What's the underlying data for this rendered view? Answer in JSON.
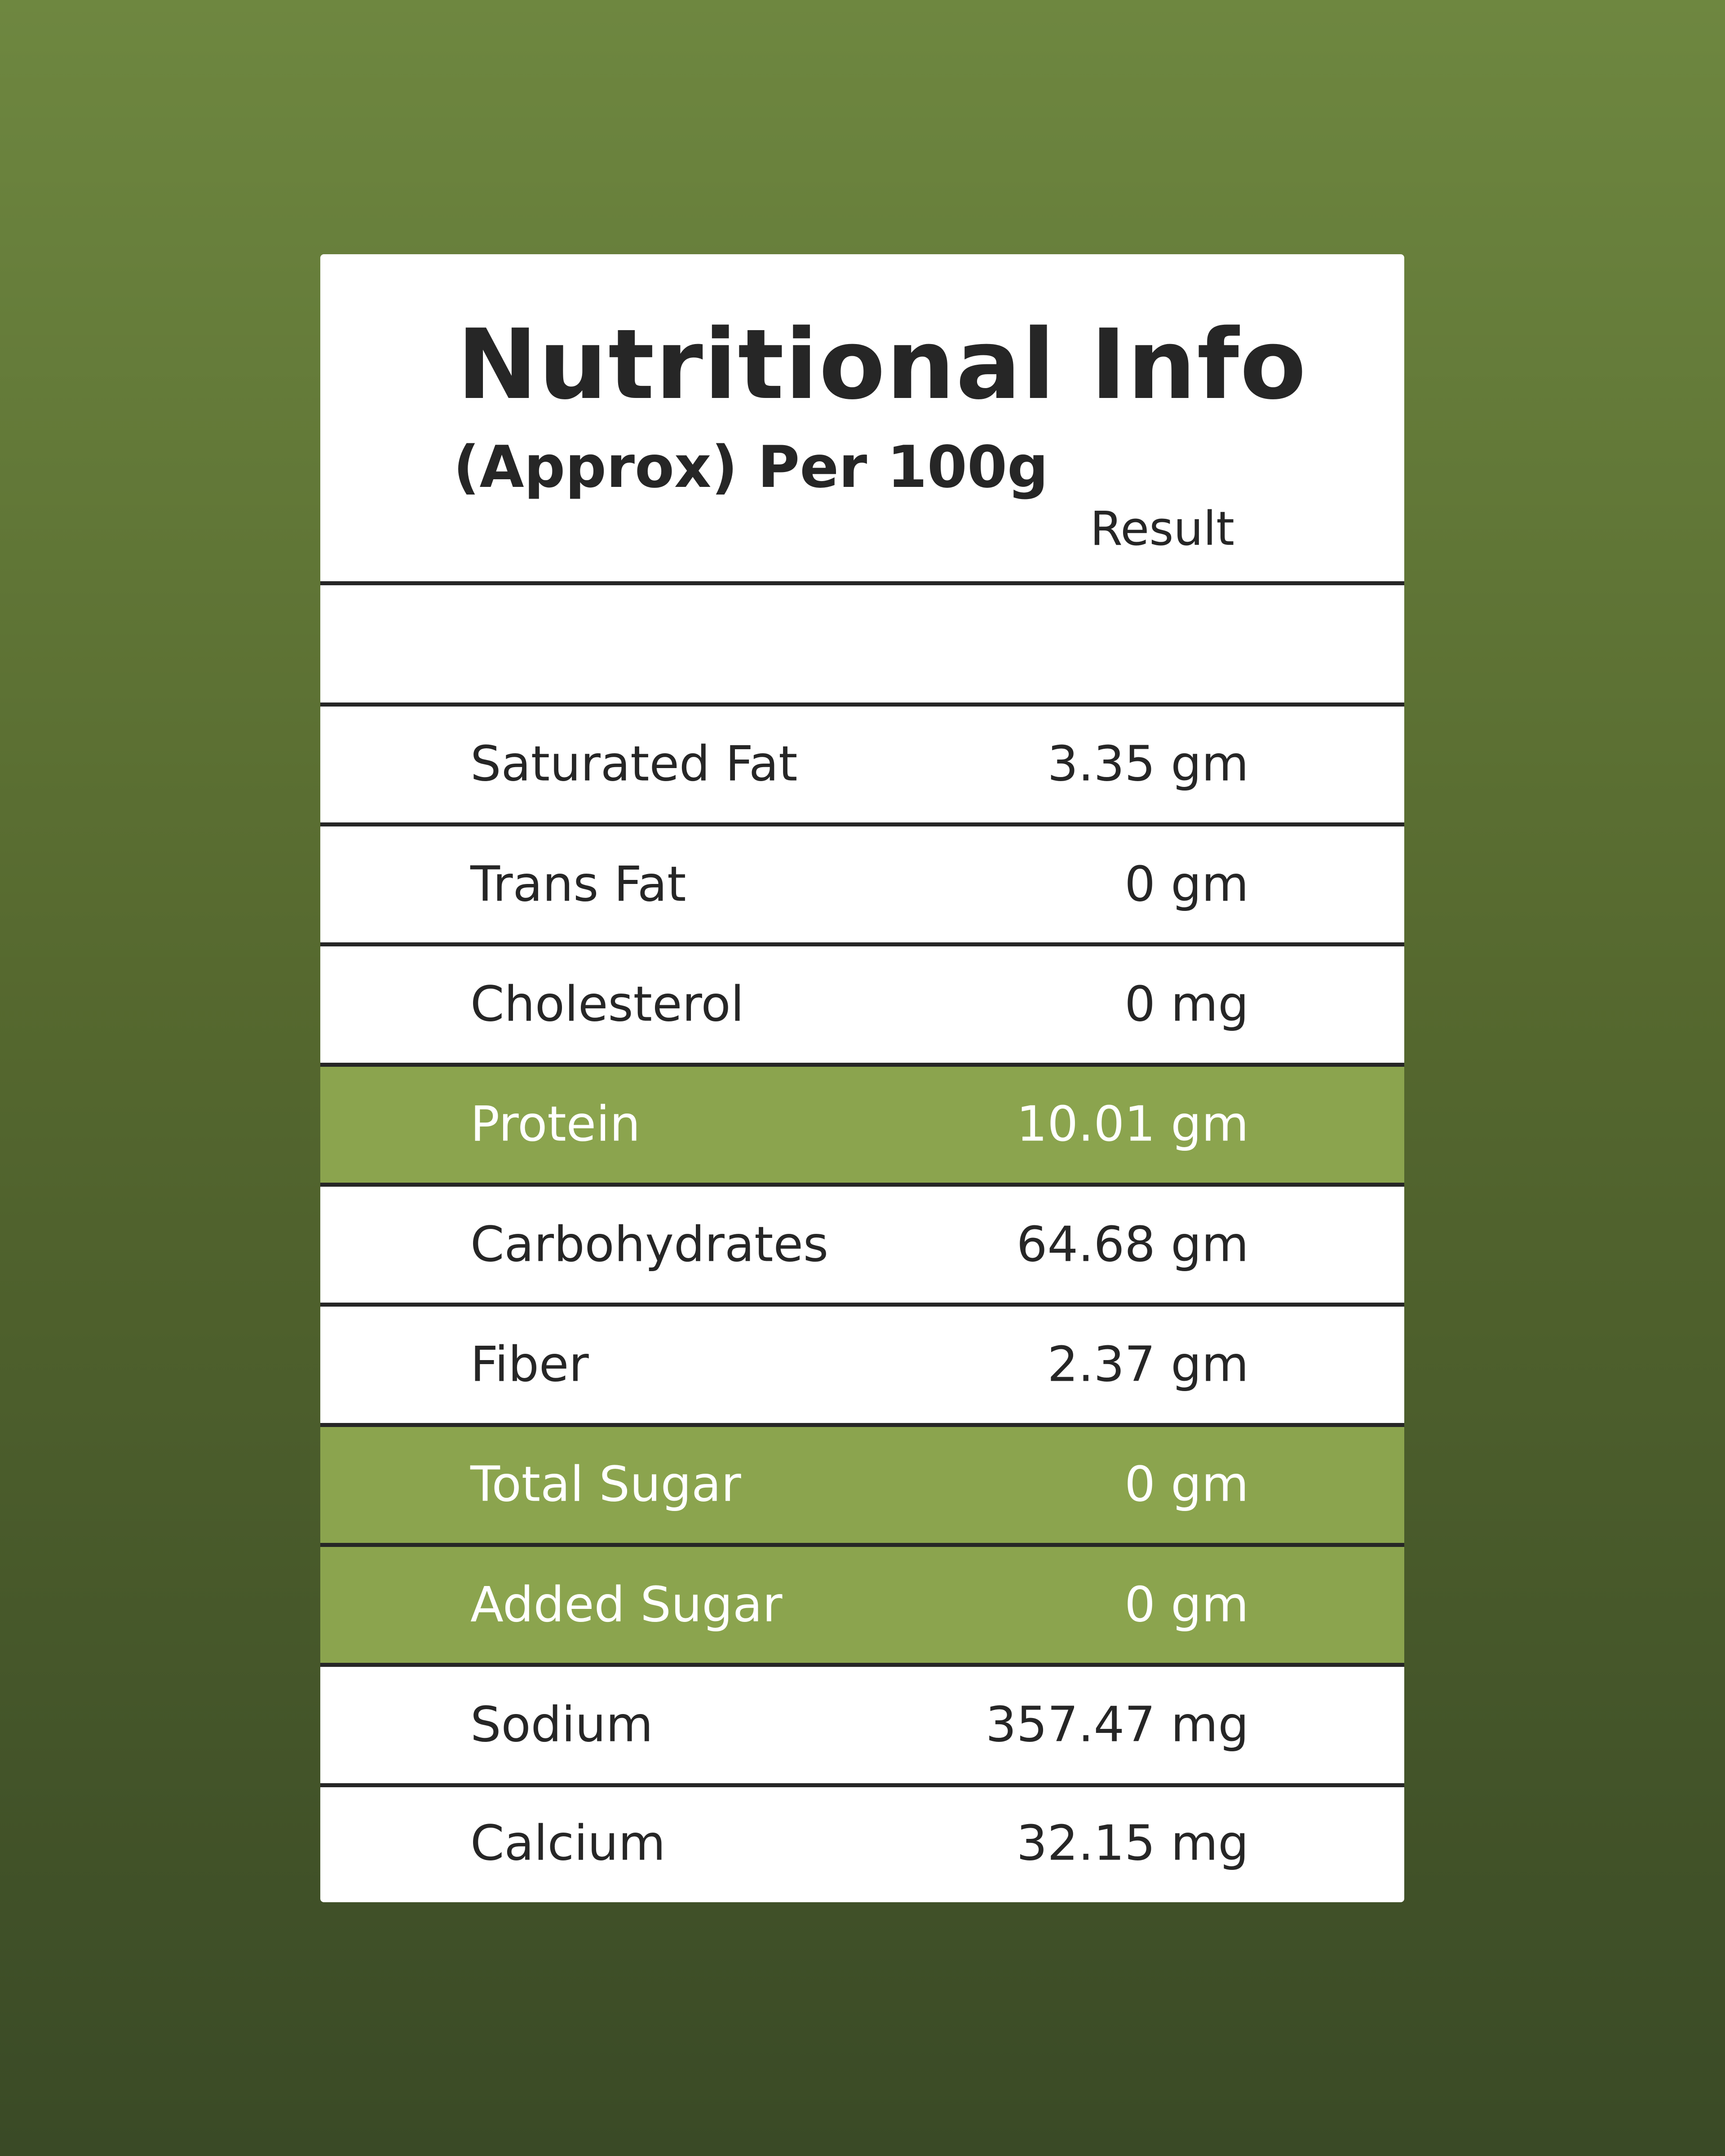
{
  "header": {
    "title": "Nutritional Info",
    "subtitle": "(Approx) Per 100g",
    "column_label": "Result"
  },
  "table": {
    "rows": [
      {
        "name": "Saturated Fat",
        "value": "3.35 gm"
      },
      {
        "name": "Trans Fat",
        "value": "0 gm"
      },
      {
        "name": "Cholesterol",
        "value": "0 mg"
      },
      {
        "name": "Protein",
        "value": "10.01 gm",
        "highlighted": true
      },
      {
        "name": "Carbohydrates",
        "value": "64.68 gm"
      },
      {
        "name": "Fiber",
        "value": "2.37 gm"
      },
      {
        "name": "Total Sugar",
        "value": "0 gm",
        "highlighted": true
      },
      {
        "name": "Added Sugar",
        "value": "0 gm",
        "highlighted": true
      },
      {
        "name": "Sodium",
        "value": "357.47 mg"
      },
      {
        "name": "Calcium",
        "value": "32.15 mg"
      }
    ]
  }
}
